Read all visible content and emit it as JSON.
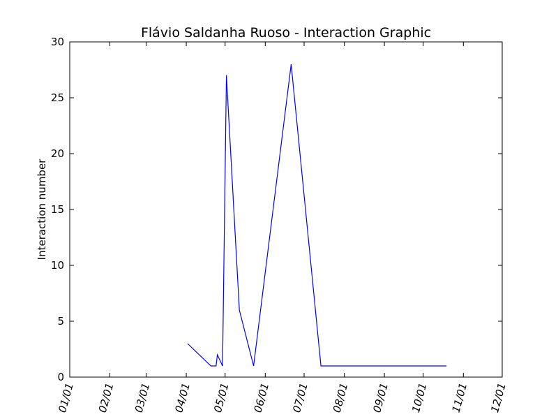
{
  "chart_data": {
    "type": "line",
    "title": "Flávio Saldanha Ruoso - Interaction Graphic",
    "xlabel": "",
    "ylabel": "Interaction number",
    "ylim": [
      0,
      30
    ],
    "xlim": [
      "01/01",
      "12/01"
    ],
    "y_ticks": [
      "0",
      "5",
      "10",
      "15",
      "20",
      "25",
      "30"
    ],
    "x_ticks": [
      "01/01",
      "02/01",
      "03/01",
      "04/01",
      "05/01",
      "06/01",
      "07/01",
      "08/01",
      "09/01",
      "10/01",
      "11/01",
      "12/01"
    ],
    "grid": false,
    "series": [
      {
        "color": "#0000ff",
        "points": [
          {
            "x": "04/02",
            "y": 3
          },
          {
            "x": "04/20",
            "y": 1
          },
          {
            "x": "04/24",
            "y": 1
          },
          {
            "x": "04/25",
            "y": 2
          },
          {
            "x": "04/29",
            "y": 1
          },
          {
            "x": "05/02",
            "y": 27
          },
          {
            "x": "05/12",
            "y": 6
          },
          {
            "x": "05/23",
            "y": 1
          },
          {
            "x": "06/21",
            "y": 28
          },
          {
            "x": "07/14",
            "y": 1
          },
          {
            "x": "10/19",
            "y": 1
          }
        ]
      }
    ]
  }
}
